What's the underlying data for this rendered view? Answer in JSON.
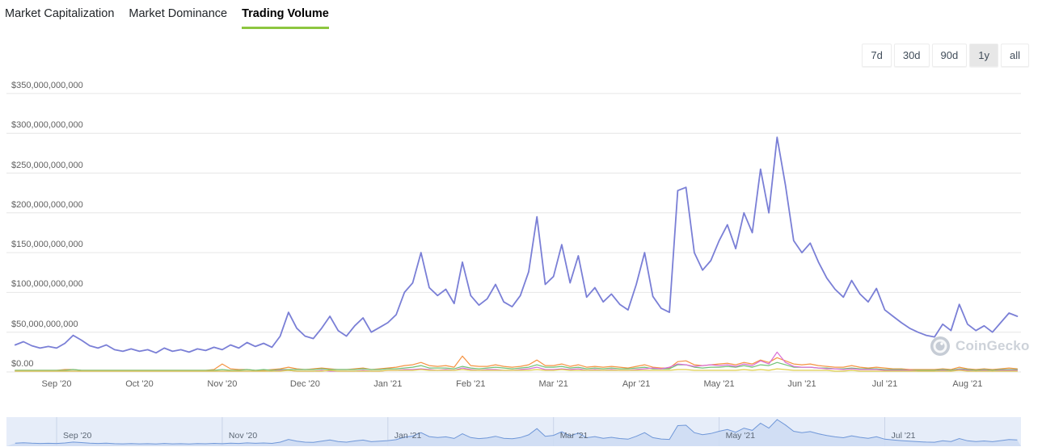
{
  "tabs": {
    "items": [
      {
        "label": "Market Capitalization",
        "active": false
      },
      {
        "label": "Market Dominance",
        "active": false
      },
      {
        "label": "Trading Volume",
        "active": true
      }
    ]
  },
  "range_selector": {
    "buttons": [
      {
        "label": "7d",
        "active": false
      },
      {
        "label": "30d",
        "active": false
      },
      {
        "label": "90d",
        "active": false
      },
      {
        "label": "1y",
        "active": true
      },
      {
        "label": "all",
        "active": false
      }
    ]
  },
  "watermark": {
    "text": "CoinGecko"
  },
  "colors": {
    "accent_green": "#8dc63f",
    "active_range_bg": "#e7e7e7",
    "grid": "#e6e6e6",
    "axis_text": "#606060",
    "main_line": "#7a7fd6",
    "navigator_bg": "#e6edf9",
    "navigator_grid": "#c9d4e8",
    "navigator_line": "#6f97d8",
    "navigator_fill": "#cedcf3"
  },
  "chart_data": {
    "type": "line",
    "title": "Trading Volume",
    "values_unit": "billions USD",
    "ylim": [
      0,
      350000000000
    ],
    "grid": true,
    "legend": "none",
    "y_ticks": [
      "$350,000,000,000",
      "$300,000,000,000",
      "$250,000,000,000",
      "$200,000,000,000",
      "$150,000,000,000",
      "$100,000,000,000",
      "$50,000,000,000",
      "$0.00"
    ],
    "x_labels": [
      "Sep '20",
      "Oct '20",
      "Nov '20",
      "Dec '20",
      "Jan '21",
      "Feb '21",
      "Mar '21",
      "Apr '21",
      "May '21",
      "Jun '21",
      "Jul '21",
      "Aug '21"
    ],
    "tick_indices": [
      5,
      15,
      25,
      35,
      45,
      55,
      65,
      75,
      85,
      95,
      105,
      115
    ],
    "series": [
      {
        "name": "total-trading-volume",
        "color": "#7a7fd6",
        "values": [
          34,
          38,
          33,
          30,
          32,
          30,
          36,
          46,
          40,
          33,
          30,
          34,
          28,
          26,
          29,
          26,
          28,
          24,
          30,
          26,
          28,
          25,
          29,
          27,
          31,
          28,
          34,
          30,
          37,
          32,
          36,
          31,
          45,
          75,
          55,
          45,
          42,
          55,
          70,
          52,
          45,
          58,
          68,
          50,
          56,
          62,
          72,
          100,
          112,
          150,
          106,
          96,
          104,
          86,
          138,
          96,
          84,
          92,
          110,
          88,
          82,
          96,
          126,
          195,
          110,
          120,
          160,
          112,
          146,
          94,
          106,
          88,
          98,
          85,
          78,
          110,
          150,
          95,
          80,
          75,
          228,
          232,
          150,
          128,
          140,
          165,
          185,
          155,
          200,
          175,
          255,
          200,
          295,
          235,
          165,
          150,
          162,
          138,
          118,
          104,
          94,
          115,
          98,
          88,
          105,
          78,
          70,
          62,
          55,
          50,
          46,
          44,
          60,
          52,
          85,
          60,
          52,
          58,
          50,
          62,
          74,
          70
        ]
      },
      {
        "name": "secondary-volume-orange",
        "color": "#f59342",
        "values": [
          2,
          2,
          2,
          2,
          2,
          2,
          3,
          3,
          2,
          2,
          2,
          2,
          2,
          2,
          2,
          2,
          2,
          2,
          2,
          2,
          2,
          2,
          2,
          2,
          3,
          10,
          4,
          3,
          3,
          2,
          2,
          3,
          4,
          6,
          4,
          3,
          4,
          5,
          4,
          3,
          3,
          4,
          5,
          3,
          4,
          5,
          6,
          8,
          9,
          12,
          8,
          7,
          8,
          6,
          20,
          8,
          7,
          7,
          9,
          7,
          6,
          7,
          9,
          15,
          8,
          8,
          10,
          7,
          9,
          6,
          7,
          6,
          7,
          6,
          5,
          7,
          9,
          6,
          5,
          5,
          13,
          14,
          9,
          8,
          9,
          10,
          11,
          9,
          12,
          10,
          15,
          12,
          18,
          14,
          10,
          9,
          10,
          8,
          7,
          6,
          6,
          8,
          6,
          5,
          6,
          5,
          4,
          4,
          3,
          3,
          3,
          3,
          4,
          3,
          6,
          4,
          3,
          4,
          3,
          4,
          5,
          4
        ]
      },
      {
        "name": "secondary-volume-green",
        "color": "#71c175",
        "values": [
          2,
          2,
          2,
          2,
          2,
          2,
          2,
          3,
          2,
          2,
          2,
          2,
          2,
          2,
          2,
          2,
          2,
          2,
          2,
          2,
          2,
          2,
          2,
          2,
          2,
          3,
          2,
          2,
          3,
          2,
          3,
          2,
          3,
          3,
          3,
          3,
          3,
          4,
          3,
          3,
          3,
          3,
          4,
          3,
          3,
          4,
          4,
          5,
          6,
          8,
          5,
          5,
          5,
          4,
          7,
          5,
          4,
          5,
          6,
          5,
          4,
          5,
          6,
          9,
          6,
          6,
          7,
          5,
          6,
          4,
          5,
          4,
          5,
          4,
          4,
          5,
          6,
          4,
          4,
          4,
          9,
          9,
          6,
          5,
          6,
          6,
          7,
          6,
          8,
          6,
          9,
          8,
          12,
          9,
          6,
          6,
          6,
          5,
          5,
          4,
          4,
          5,
          4,
          4,
          4,
          3,
          3,
          3,
          2,
          2,
          2,
          2,
          3,
          2,
          4,
          3,
          2,
          3,
          2,
          3,
          3,
          3
        ]
      },
      {
        "name": "secondary-volume-magenta",
        "color": "#d96fd6",
        "values": [
          1,
          1,
          1,
          1,
          1,
          1,
          1,
          1,
          1,
          1,
          1,
          1,
          1,
          1,
          1,
          1,
          1,
          1,
          1,
          1,
          1,
          1,
          1,
          1,
          1,
          1,
          1,
          1,
          1,
          1,
          1,
          1,
          2,
          2,
          1,
          1,
          1,
          2,
          1,
          1,
          1,
          1,
          2,
          1,
          1,
          2,
          2,
          3,
          3,
          4,
          3,
          2,
          3,
          2,
          5,
          3,
          2,
          3,
          3,
          2,
          2,
          3,
          4,
          6,
          3,
          3,
          4,
          3,
          4,
          2,
          3,
          2,
          3,
          2,
          2,
          3,
          4,
          5,
          4,
          6,
          10,
          9,
          7,
          8,
          9,
          8,
          9,
          7,
          10,
          8,
          14,
          10,
          25,
          12,
          7,
          6,
          6,
          5,
          4,
          4,
          3,
          4,
          3,
          3,
          3,
          2,
          2,
          2,
          2,
          1,
          1,
          1,
          2,
          1,
          3,
          2,
          1,
          2,
          1,
          2,
          2,
          2
        ]
      },
      {
        "name": "secondary-volume-yellow",
        "color": "#dfce4a",
        "values": [
          1,
          1,
          1,
          1,
          1,
          1,
          1,
          1,
          1,
          1,
          1,
          1,
          1,
          1,
          1,
          1,
          1,
          1,
          1,
          1,
          1,
          1,
          1,
          1,
          1,
          1,
          1,
          1,
          1,
          1,
          1,
          1,
          1,
          2,
          1,
          1,
          1,
          1,
          2,
          1,
          1,
          1,
          1,
          1,
          1,
          2,
          2,
          2,
          2,
          3,
          2,
          2,
          2,
          2,
          3,
          2,
          2,
          2,
          2,
          2,
          2,
          2,
          2,
          3,
          2,
          2,
          3,
          2,
          2,
          2,
          2,
          2,
          2,
          2,
          2,
          2,
          2,
          2,
          2,
          2,
          3,
          3,
          2,
          2,
          2,
          2,
          2,
          2,
          3,
          2,
          3,
          2,
          4,
          3,
          2,
          2,
          2,
          2,
          2,
          1,
          1,
          2,
          1,
          1,
          1,
          1,
          1,
          1,
          1,
          1,
          1,
          1,
          1,
          1,
          2,
          1,
          1,
          1,
          1,
          1,
          1,
          1
        ]
      }
    ]
  },
  "navigator": {
    "labels": [
      "Sep '20",
      "Nov '20",
      "Jan '21",
      "Mar '21",
      "May '21",
      "Jul '21"
    ]
  }
}
